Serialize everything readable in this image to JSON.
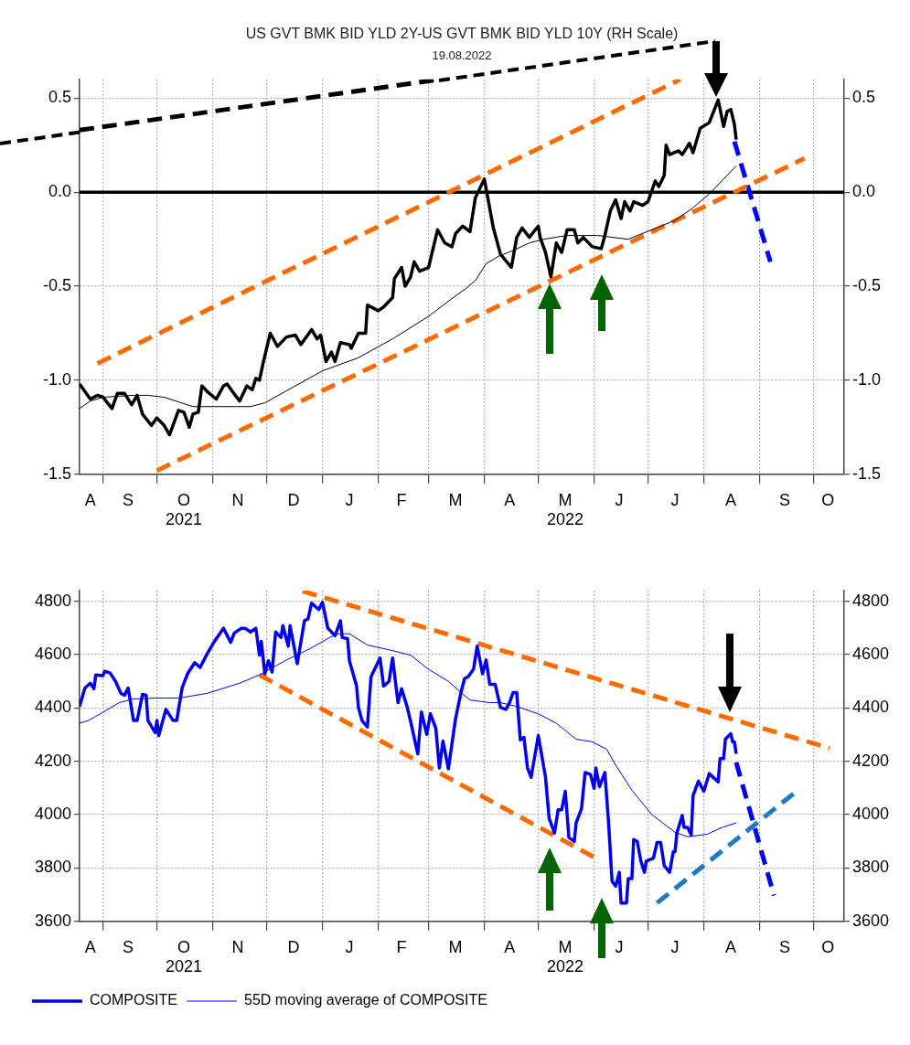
{
  "chart_data": [
    {
      "type": "line",
      "title": "US GVT BMK BID YLD 2Y-US GVT BMK BID YLD 10Y (RH Scale)",
      "subtitle": "19.08.2022",
      "marker": "none",
      "grid": true,
      "legend": false,
      "xlim": [
        "2021-08-19",
        "2022-10-18"
      ],
      "xticks": [
        {
          "value": "2021-08-25",
          "label": "A"
        },
        {
          "value": "2021-09-01",
          "label": null
        },
        {
          "value": "2021-09-15",
          "label": "S"
        },
        {
          "value": "2021-10-01",
          "label": null
        },
        {
          "value": "2021-10-16",
          "label": "O\n2021"
        },
        {
          "value": "2021-11-01",
          "label": null
        },
        {
          "value": "2021-11-15",
          "label": "N"
        },
        {
          "value": "2021-12-01",
          "label": null
        },
        {
          "value": "2021-12-16",
          "label": "D"
        },
        {
          "value": "2022-01-01",
          "label": null
        },
        {
          "value": "2022-01-16",
          "label": "J"
        },
        {
          "value": "2022-02-01",
          "label": null
        },
        {
          "value": "2022-02-14",
          "label": "F"
        },
        {
          "value": "2022-03-01",
          "label": null
        },
        {
          "value": "2022-03-16",
          "label": "M"
        },
        {
          "value": "2022-04-01",
          "label": null
        },
        {
          "value": "2022-04-15",
          "label": "A"
        },
        {
          "value": "2022-05-01",
          "label": null
        },
        {
          "value": "2022-05-16",
          "label": "M\n2022"
        },
        {
          "value": "2022-06-01",
          "label": null
        },
        {
          "value": "2022-06-15",
          "label": "J"
        },
        {
          "value": "2022-07-01",
          "label": null
        },
        {
          "value": "2022-07-16",
          "label": "J"
        },
        {
          "value": "2022-08-01",
          "label": null
        },
        {
          "value": "2022-08-16",
          "label": "A"
        },
        {
          "value": "2022-09-01",
          "label": null
        },
        {
          "value": "2022-09-15",
          "label": "S"
        },
        {
          "value": "2022-10-01",
          "label": null
        },
        {
          "value": "2022-10-09",
          "label": "O"
        }
      ],
      "ylim": [
        -1.5,
        0.6
      ],
      "yticks": [
        -1.5,
        {
          "value": -1,
          "label": "-1.0"
        },
        -0.5,
        {
          "value": 0,
          "label": "0.0"
        },
        0.5
      ],
      "y2lim": [
        -1.5,
        0.6
      ],
      "y2ticks": [
        -1.5,
        {
          "value": -1,
          "label": "-1.0"
        },
        -0.5,
        {
          "value": 0,
          "label": "0.0"
        },
        0.5
      ],
      "ref_lines": [
        {
          "axis": "y",
          "value": 0,
          "color": "#000000"
        }
      ],
      "series": [
        {
          "color": "#000000",
          "x": [
            "2021-08-19",
            "2021-08-25",
            "2021-08-29",
            "2021-09-01",
            "2021-09-06",
            "2021-09-09",
            "2021-09-13",
            "2021-09-17",
            "2021-09-20",
            "2021-09-23",
            "2021-09-28",
            "2021-10-01",
            "2021-10-05",
            "2021-10-08",
            "2021-10-13",
            "2021-10-16",
            "2021-10-19",
            "2021-10-21",
            "2021-10-24",
            "2021-10-26",
            "2021-10-29",
            "2021-11-03",
            "2021-11-07",
            "2021-11-09",
            "2021-11-12",
            "2021-11-16",
            "2021-11-20",
            "2021-11-23",
            "2021-11-25",
            "2021-11-27",
            "2021-11-29",
            "2021-12-03",
            "2021-12-07",
            "2021-12-12",
            "2021-12-17",
            "2021-12-20",
            "2021-12-26",
            "2021-12-29",
            "2021-12-31",
            "2022-01-03",
            "2022-01-06",
            "2022-01-08",
            "2022-01-11",
            "2022-01-16",
            "2022-01-17",
            "2022-01-21",
            "2022-01-25",
            "2022-01-26",
            "2022-02-01",
            "2022-02-04",
            "2022-02-09",
            "2022-02-10",
            "2022-02-14",
            "2022-02-16",
            "2022-02-19",
            "2022-02-21",
            "2022-02-24",
            "2022-03-01",
            "2022-03-06",
            "2022-03-10",
            "2022-03-14",
            "2022-03-16",
            "2022-03-20",
            "2022-03-24",
            "2022-03-27",
            "2022-04-01",
            "2022-04-06",
            "2022-04-10",
            "2022-04-16",
            "2022-04-19",
            "2022-04-22",
            "2022-04-26",
            "2022-05-01",
            "2022-05-02",
            "2022-05-05",
            "2022-05-08",
            "2022-05-11",
            "2022-05-14",
            "2022-05-17",
            "2022-05-21",
            "2022-05-23",
            "2022-05-26",
            "2022-05-31",
            "2022-06-05",
            "2022-06-07",
            "2022-06-10",
            "2022-06-13",
            "2022-06-16",
            "2022-06-18",
            "2022-06-21",
            "2022-06-23",
            "2022-06-28",
            "2022-07-01",
            "2022-07-05",
            "2022-07-07",
            "2022-07-10",
            "2022-07-11",
            "2022-07-13",
            "2022-07-18",
            "2022-07-20",
            "2022-07-24",
            "2022-07-26",
            "2022-07-30",
            "2022-08-04",
            "2022-08-09",
            "2022-08-12",
            "2022-08-14",
            "2022-08-16",
            "2022-08-18",
            "2022-08-19"
          ],
          "values": [
            -1.02,
            -1.1,
            -1.08,
            -1.09,
            -1.15,
            -1.07,
            -1.07,
            -1.13,
            -1.08,
            -1.18,
            -1.24,
            -1.2,
            -1.24,
            -1.29,
            -1.16,
            -1.17,
            -1.25,
            -1.18,
            -1.17,
            -1.03,
            -1.06,
            -1.1,
            -1.03,
            -1.02,
            -1.06,
            -1.11,
            -1.03,
            -1.05,
            -0.99,
            -1.0,
            -0.91,
            -0.75,
            -0.82,
            -0.77,
            -0.76,
            -0.81,
            -0.73,
            -0.78,
            -0.76,
            -0.9,
            -0.85,
            -0.9,
            -0.8,
            -0.81,
            -0.83,
            -0.75,
            -0.75,
            -0.6,
            -0.63,
            -0.61,
            -0.56,
            -0.46,
            -0.4,
            -0.5,
            -0.45,
            -0.37,
            -0.42,
            -0.4,
            -0.2,
            -0.27,
            -0.29,
            -0.22,
            -0.18,
            -0.21,
            -0.03,
            0.07,
            -0.19,
            -0.33,
            -0.4,
            -0.24,
            -0.19,
            -0.24,
            -0.18,
            -0.24,
            -0.32,
            -0.45,
            -0.27,
            -0.32,
            -0.2,
            -0.2,
            -0.27,
            -0.24,
            -0.29,
            -0.3,
            -0.23,
            -0.1,
            -0.04,
            -0.14,
            -0.05,
            -0.1,
            -0.05,
            -0.07,
            -0.05,
            0.06,
            0.03,
            0.09,
            0.25,
            0.2,
            0.22,
            0.2,
            0.26,
            0.21,
            0.34,
            0.37,
            0.49,
            0.35,
            0.43,
            0.44,
            0.36,
            0.28
          ]
        },
        {
          "color": "#000000",
          "x": [
            "2021-08-19",
            "2021-08-25",
            "2021-09-01",
            "2021-09-18",
            "2021-09-26",
            "2021-10-05",
            "2021-10-21",
            "2021-11-22",
            "2021-11-30",
            "2021-12-15",
            "2022-01-01",
            "2022-01-21",
            "2022-02-09",
            "2022-02-19",
            "2022-03-01",
            "2022-03-12",
            "2022-03-22",
            "2022-03-27",
            "2022-04-02",
            "2022-04-09",
            "2022-04-17",
            "2022-04-26",
            "2022-05-04",
            "2022-05-17",
            "2022-06-03",
            "2022-06-20",
            "2022-07-03",
            "2022-07-16",
            "2022-07-25",
            "2022-08-04",
            "2022-08-11",
            "2022-08-19"
          ],
          "values": [
            -1.15,
            -1.11,
            -1.09,
            -1.08,
            -1.08,
            -1.09,
            -1.14,
            -1.14,
            -1.12,
            -1.04,
            -0.95,
            -0.88,
            -0.78,
            -0.72,
            -0.66,
            -0.58,
            -0.51,
            -0.47,
            -0.38,
            -0.34,
            -0.31,
            -0.27,
            -0.25,
            -0.23,
            -0.23,
            -0.25,
            -0.2,
            -0.15,
            -0.09,
            -0.01,
            0.06,
            0.14
          ]
        },
        {
          "type": "line",
          "line_style": "dashed",
          "color": "#ff6a00",
          "x": [
            "2021-08-29",
            "2022-07-19"
          ],
          "values": [
            -0.91,
            0.6
          ]
        },
        {
          "type": "line",
          "line_style": "dashed",
          "color": "#ff6a00",
          "x": [
            "2021-10-01",
            "2022-09-26"
          ],
          "values": [
            -1.48,
            0.18
          ]
        },
        {
          "type": "line",
          "line_style": "dashed",
          "color": "#0000ff",
          "x": [
            "2022-08-18",
            "2022-09-07"
          ],
          "values": [
            0.27,
            -0.37
          ]
        },
        {
          "type": "line",
          "line_style": "dashed",
          "color": "#000000",
          "x": [
            "2021-08-19",
            "2022-03-07"
          ],
          "values": [
            0.33,
            0.6
          ]
        }
      ]
    },
    {
      "type": "line",
      "marker": "none",
      "grid": true,
      "legend": "bottom",
      "xlim": [
        "2021-08-19",
        "2022-10-18"
      ],
      "xticks": [
        {
          "value": "2021-08-25",
          "label": "A"
        },
        {
          "value": "2021-09-01",
          "label": null
        },
        {
          "value": "2021-09-15",
          "label": "S"
        },
        {
          "value": "2021-10-01",
          "label": null
        },
        {
          "value": "2021-10-16",
          "label": "O\n2021"
        },
        {
          "value": "2021-11-01",
          "label": null
        },
        {
          "value": "2021-11-15",
          "label": "N"
        },
        {
          "value": "2021-12-01",
          "label": null
        },
        {
          "value": "2021-12-16",
          "label": "D"
        },
        {
          "value": "2022-01-01",
          "label": null
        },
        {
          "value": "2022-01-16",
          "label": "J"
        },
        {
          "value": "2022-02-01",
          "label": null
        },
        {
          "value": "2022-02-14",
          "label": "F"
        },
        {
          "value": "2022-03-01",
          "label": null
        },
        {
          "value": "2022-03-16",
          "label": "M"
        },
        {
          "value": "2022-04-01",
          "label": null
        },
        {
          "value": "2022-04-15",
          "label": "A"
        },
        {
          "value": "2022-05-01",
          "label": null
        },
        {
          "value": "2022-05-16",
          "label": "M\n2022"
        },
        {
          "value": "2022-06-01",
          "label": null
        },
        {
          "value": "2022-06-15",
          "label": "J"
        },
        {
          "value": "2022-07-01",
          "label": null
        },
        {
          "value": "2022-07-16",
          "label": "J"
        },
        {
          "value": "2022-08-01",
          "label": null
        },
        {
          "value": "2022-08-16",
          "label": "A"
        },
        {
          "value": "2022-09-01",
          "label": null
        },
        {
          "value": "2022-09-15",
          "label": "S"
        },
        {
          "value": "2022-10-01",
          "label": null
        },
        {
          "value": "2022-10-09",
          "label": "O"
        }
      ],
      "ylim": [
        3600,
        4840
      ],
      "yticks": [
        3600,
        3800,
        4000,
        4200,
        4400,
        4600,
        4800
      ],
      "y2lim": [
        3600,
        4840
      ],
      "y2ticks": [
        3600,
        3800,
        4000,
        4200,
        4400,
        4600,
        4800
      ],
      "series": [
        {
          "name": "COMPOSITE",
          "color": "#0000ee",
          "x": [
            "2021-08-19",
            "2021-08-22",
            "2021-08-25",
            "2021-08-27",
            "2021-08-28",
            "2021-09-01",
            "2021-09-02",
            "2021-09-05",
            "2021-09-08",
            "2021-09-11",
            "2021-09-13",
            "2021-09-15",
            "2021-09-18",
            "2021-09-20",
            "2021-09-23",
            "2021-09-25",
            "2021-09-26",
            "2021-09-30",
            "2021-10-01",
            "2021-10-02",
            "2021-10-06",
            "2021-10-10",
            "2021-10-12",
            "2021-10-15",
            "2021-10-18",
            "2021-10-22",
            "2021-10-25",
            "2021-10-29",
            "2021-11-02",
            "2021-11-07",
            "2021-11-11",
            "2021-11-13",
            "2021-11-17",
            "2021-11-19",
            "2021-11-22",
            "2021-11-25",
            "2021-11-27",
            "2021-11-28",
            "2021-11-30",
            "2021-12-02",
            "2021-12-04",
            "2021-12-06",
            "2021-12-09",
            "2021-12-10",
            "2021-12-13",
            "2021-12-14",
            "2021-12-18",
            "2021-12-22",
            "2021-12-24",
            "2021-12-26",
            "2021-12-30",
            "2022-01-01",
            "2022-01-04",
            "2022-01-08",
            "2022-01-11",
            "2022-01-12",
            "2022-01-15",
            "2022-01-16",
            "2022-01-20",
            "2022-01-21",
            "2022-01-23",
            "2022-01-26",
            "2022-01-28",
            "2022-02-02",
            "2022-02-04",
            "2022-02-07",
            "2022-02-09",
            "2022-02-12",
            "2022-02-14",
            "2022-02-17",
            "2022-02-19",
            "2022-02-23",
            "2022-02-25",
            "2022-02-28",
            "2022-03-02",
            "2022-03-05",
            "2022-03-07",
            "2022-03-09",
            "2022-03-12",
            "2022-03-16",
            "2022-03-19",
            "2022-03-21",
            "2022-03-23",
            "2022-03-26",
            "2022-03-28",
            "2022-03-31",
            "2022-04-02",
            "2022-04-04",
            "2022-04-07",
            "2022-04-10",
            "2022-04-13",
            "2022-04-15",
            "2022-04-17",
            "2022-04-19",
            "2022-04-21",
            "2022-04-23",
            "2022-04-25",
            "2022-04-27",
            "2022-05-01",
            "2022-05-05",
            "2022-05-07",
            "2022-05-10",
            "2022-05-12",
            "2022-05-14",
            "2022-05-16",
            "2022-05-18",
            "2022-05-21",
            "2022-05-22",
            "2022-05-25",
            "2022-05-27",
            "2022-05-30",
            "2022-06-01",
            "2022-06-02",
            "2022-06-04",
            "2022-06-07",
            "2022-06-09",
            "2022-06-11",
            "2022-06-13",
            "2022-06-15",
            "2022-06-16",
            "2022-06-19",
            "2022-06-20",
            "2022-06-22",
            "2022-06-23",
            "2022-06-25",
            "2022-06-27",
            "2022-06-29",
            "2022-06-30",
            "2022-07-04",
            "2022-07-06",
            "2022-07-08",
            "2022-07-10",
            "2022-07-13",
            "2022-07-15",
            "2022-07-16",
            "2022-07-17",
            "2022-07-20",
            "2022-07-21",
            "2022-07-23",
            "2022-07-25",
            "2022-07-26",
            "2022-07-29",
            "2022-08-01",
            "2022-08-04",
            "2022-08-09",
            "2022-08-10",
            "2022-08-12",
            "2022-08-13",
            "2022-08-16",
            "2022-08-17",
            "2022-08-18",
            "2022-08-19"
          ],
          "values": [
            4406,
            4475,
            4493,
            4472,
            4524,
            4521,
            4538,
            4531,
            4500,
            4455,
            4448,
            4475,
            4353,
            4353,
            4451,
            4448,
            4353,
            4308,
            4353,
            4297,
            4395,
            4353,
            4353,
            4475,
            4528,
            4570,
            4552,
            4604,
            4650,
            4699,
            4646,
            4681,
            4699,
            4699,
            4685,
            4699,
            4598,
            4650,
            4528,
            4577,
            4535,
            4685,
            4664,
            4709,
            4632,
            4709,
            4566,
            4727,
            4734,
            4793,
            4769,
            4797,
            4699,
            4671,
            4727,
            4664,
            4660,
            4577,
            4482,
            4402,
            4353,
            4329,
            4517,
            4587,
            4482,
            4500,
            4587,
            4420,
            4472,
            4406,
            4350,
            4228,
            4385,
            4301,
            4378,
            4325,
            4175,
            4276,
            4172,
            4360,
            4458,
            4510,
            4517,
            4545,
            4632,
            4528,
            4580,
            4489,
            4489,
            4402,
            4395,
            4420,
            4458,
            4458,
            4280,
            4290,
            4175,
            4140,
            4297,
            4140,
            3987,
            3931,
            4018,
            4018,
            4088,
            3914,
            3900,
            3969,
            4022,
            4158,
            4151,
            4099,
            4175,
            4105,
            4158,
            3976,
            3750,
            3732,
            3784,
            3669,
            3669,
            3760,
            3760,
            3907,
            3900,
            3826,
            3784,
            3826,
            3837,
            3896,
            3896,
            3809,
            3784,
            3861,
            3861,
            3931,
            3997,
            3952,
            3952,
            3924,
            4071,
            4126,
            4088,
            4154,
            4123,
            4210,
            4210,
            4283,
            4304,
            4273,
            4273,
            4228
          ]
        },
        {
          "name": "55D moving average of COMPOSITE",
          "color": "#0000ee",
          "x": [
            "2021-08-19",
            "2021-08-24",
            "2021-09-01",
            "2021-09-10",
            "2021-09-18",
            "2021-09-30",
            "2021-10-13",
            "2021-10-29",
            "2021-11-16",
            "2021-11-27",
            "2021-12-12",
            "2021-12-25",
            "2022-01-05",
            "2022-01-10",
            "2022-01-16",
            "2022-01-26",
            "2022-02-09",
            "2022-02-19",
            "2022-03-01",
            "2022-03-12",
            "2022-03-19",
            "2022-03-24",
            "2022-04-04",
            "2022-04-10",
            "2022-04-19",
            "2022-05-01",
            "2022-05-11",
            "2022-05-22",
            "2022-05-31",
            "2022-06-08",
            "2022-06-13",
            "2022-06-22",
            "2022-07-03",
            "2022-07-16",
            "2022-07-23",
            "2022-08-03",
            "2022-08-11",
            "2022-08-19"
          ],
          "values": [
            4343,
            4353,
            4384,
            4420,
            4434,
            4437,
            4437,
            4455,
            4493,
            4524,
            4580,
            4622,
            4664,
            4678,
            4678,
            4636,
            4615,
            4598,
            4545,
            4500,
            4458,
            4430,
            4420,
            4420,
            4406,
            4378,
            4343,
            4283,
            4273,
            4245,
            4186,
            4092,
            4001,
            3934,
            3917,
            3927,
            3952,
            3969
          ]
        },
        {
          "type": "line",
          "line_style": "dashed",
          "color": "#ff6a00",
          "x": [
            "2021-12-21",
            "2022-10-10"
          ],
          "values": [
            4838,
            4249
          ]
        },
        {
          "type": "line",
          "line_style": "dashed",
          "color": "#ff6a00",
          "x": [
            "2021-11-27",
            "2022-06-02"
          ],
          "values": [
            4524,
            3837
          ]
        },
        {
          "type": "line",
          "line_style": "dashed",
          "color": "#0000ee",
          "x": [
            "2022-08-19",
            "2022-09-09"
          ],
          "values": [
            4196,
            3697
          ]
        },
        {
          "type": "line",
          "line_style": "dashed",
          "color": "#1f7bbf",
          "x": [
            "2022-07-06",
            "2022-09-21"
          ],
          "values": [
            3669,
            4085
          ]
        }
      ]
    }
  ]
}
